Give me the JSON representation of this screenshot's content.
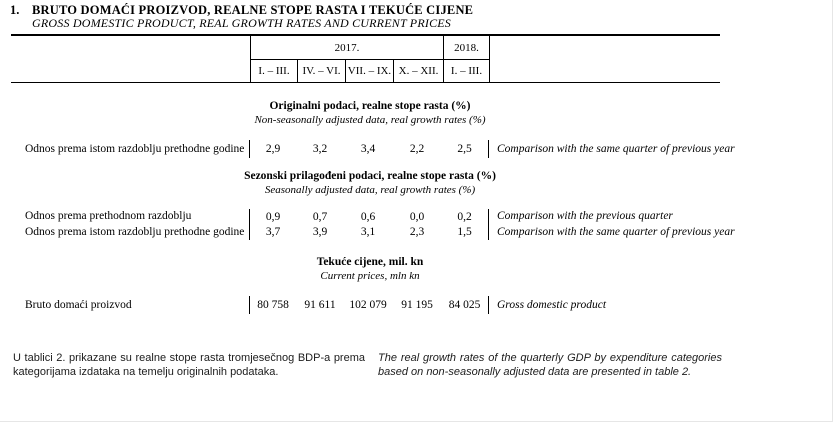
{
  "title": {
    "number": "1.",
    "hr": "BRUTO DOMAĆI PROIZVOD, REALNE STOPE RASTA I TEKUĆE CIJENE",
    "en": "GROSS DOMESTIC PRODUCT, REAL GROWTH RATES AND CURRENT PRICES"
  },
  "table": {
    "header": {
      "years": [
        "2017.",
        "2018."
      ],
      "quarters": [
        "I. – III.",
        "IV. – VI.",
        "VII. – IX.",
        "X. – XII.",
        "I. – III."
      ]
    },
    "sections": [
      {
        "heading_hr": "Originalni podaci, realne stope rasta (%)",
        "heading_en": "Non-seasonally adjusted data, real growth rates (%)",
        "rows": [
          {
            "label_hr": "Odnos prema istom razdoblju prethodne godine",
            "values": [
              "2,9",
              "3,2",
              "3,4",
              "2,2",
              "2,5"
            ],
            "label_en": "Comparison with the same quarter of previous year"
          }
        ]
      },
      {
        "heading_hr": "Sezonski prilagođeni podaci, realne stope rasta (%)",
        "heading_en": "Seasonally adjusted data, real growth rates (%)",
        "rows": [
          {
            "label_hr": "Odnos prema prethodnom razdoblju",
            "values": [
              "0,9",
              "0,7",
              "0,6",
              "0,0",
              "0,2"
            ],
            "label_en": "Comparison with the previous quarter"
          },
          {
            "label_hr": "Odnos prema istom razdoblju prethodne godine",
            "values": [
              "3,7",
              "3,9",
              "3,1",
              "2,3",
              "1,5"
            ],
            "label_en": "Comparison with the same quarter of previous year"
          }
        ]
      },
      {
        "heading_hr": "Tekuće cijene, mil. kn",
        "heading_en": "Current prices, mln kn",
        "rows": [
          {
            "label_hr": "Bruto domaći proizvod",
            "values": [
              "80 758",
              "91 611",
              "102 079",
              "91 195",
              "84 025"
            ],
            "label_en": "Gross domestic product"
          }
        ]
      }
    ]
  },
  "footnote": {
    "hr": "U tablici 2. prikazane su realne stope rasta tromjesečnog BDP-a prema kategorijama izdataka na temelju originalnih podataka.",
    "en": "The real growth rates of the quarterly GDP by expenditure categories based on non-seasonally adjusted data are presented in table 2."
  }
}
